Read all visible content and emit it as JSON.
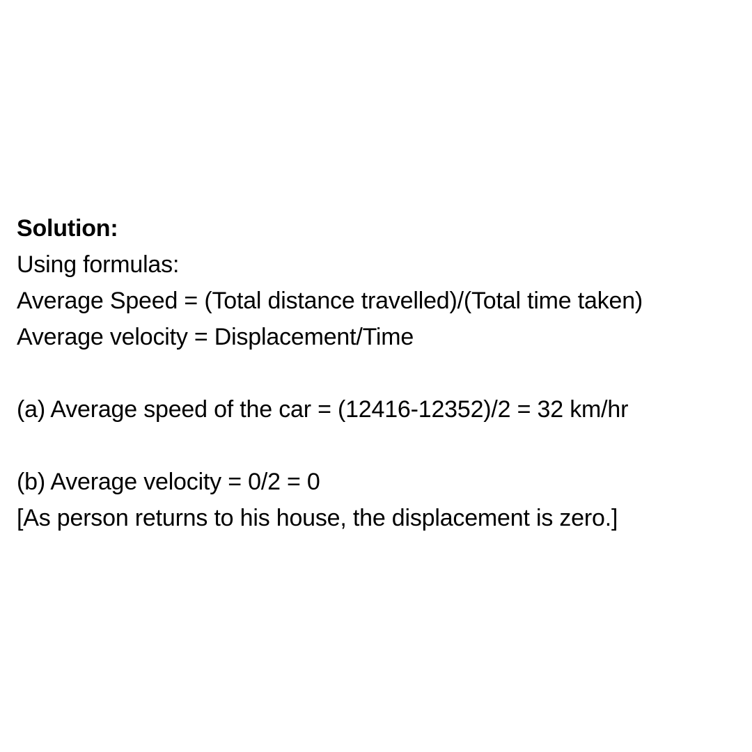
{
  "solution": {
    "heading": "Solution:",
    "intro": "Using formulas:",
    "formula_speed": "Average Speed = (Total distance travelled)/(Total time taken)",
    "formula_velocity": "Average velocity = Displacement/Time",
    "part_a": "(a) Average speed of the car = (12416-12352)/2 = 32 km/hr",
    "part_b": "(b) Average velocity = 0/2 = 0",
    "part_b_note": "[As person returns to his house, the displacement is zero.]"
  }
}
